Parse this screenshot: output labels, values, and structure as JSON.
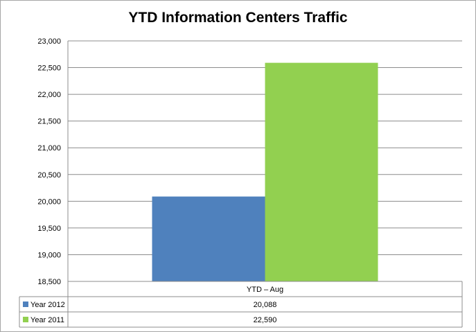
{
  "chart_data": {
    "type": "bar",
    "title": "YTD Information Centers Traffic",
    "categories": [
      "YTD – Aug"
    ],
    "series": [
      {
        "name": "Year 2012",
        "values": [
          20088
        ],
        "value_labels": [
          "20,088"
        ],
        "color": "#4f81bd"
      },
      {
        "name": "Year 2011",
        "values": [
          22590
        ],
        "value_labels": [
          "22,590"
        ],
        "color": "#92d050"
      }
    ],
    "ylim": [
      18500,
      23000
    ],
    "yticks": [
      18500,
      19000,
      19500,
      20000,
      20500,
      21000,
      21500,
      22000,
      22500,
      23000
    ],
    "ytick_labels": [
      "18,500",
      "19,000",
      "19,500",
      "20,000",
      "20,500",
      "21,000",
      "21,500",
      "22,000",
      "22,500",
      "23,000"
    ],
    "grid": true,
    "legend": "data-table-below",
    "data_table": true
  }
}
